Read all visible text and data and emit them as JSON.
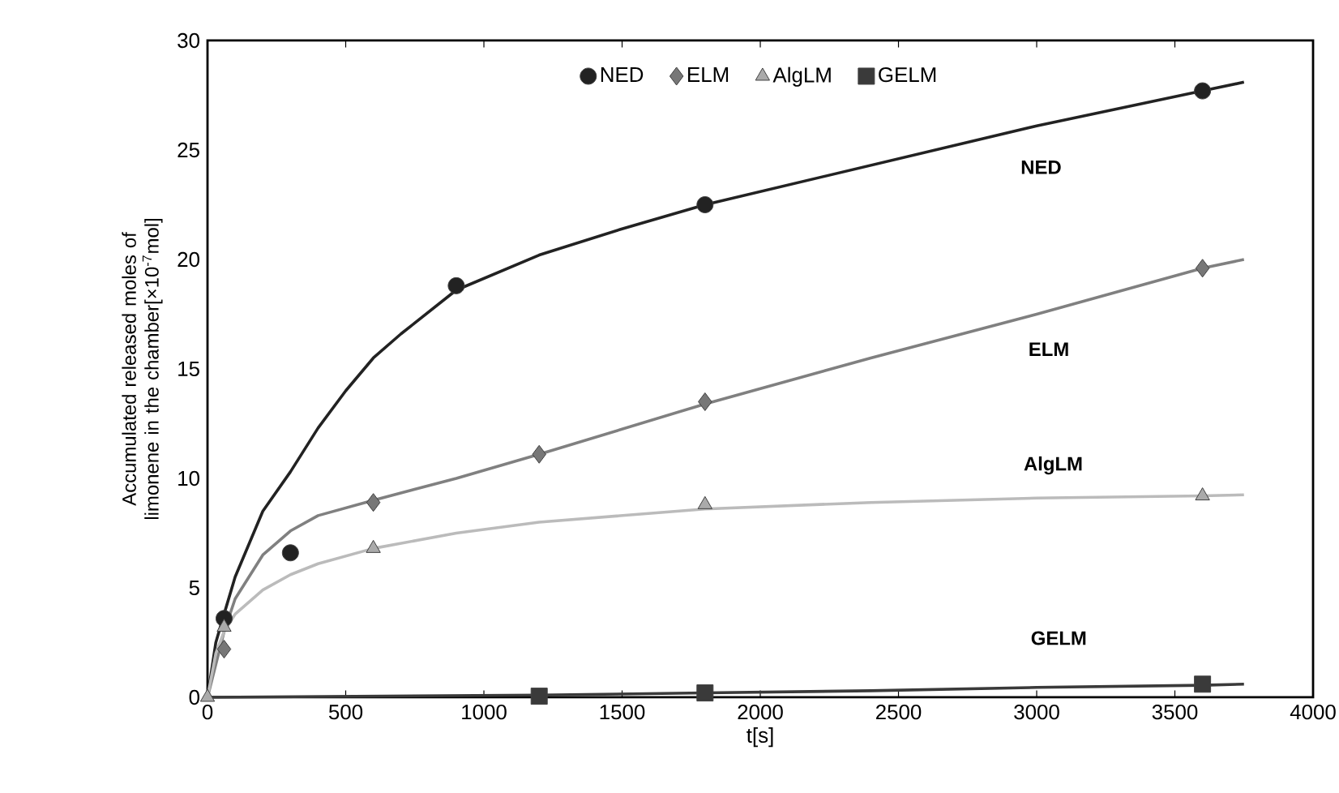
{
  "chart_data": {
    "type": "scatter",
    "xlabel": "t[s]",
    "ylabel": "Accumulated released moles of limonene in the chamber[×10$^{-7}$mol]",
    "xlim": [
      0,
      4000
    ],
    "ylim": [
      0,
      30
    ],
    "xticks": [
      0,
      500,
      1000,
      1500,
      2000,
      2500,
      3000,
      3500,
      4000
    ],
    "yticks": [
      0,
      5,
      10,
      15,
      20,
      25,
      30
    ],
    "legend": "top",
    "grid": false,
    "series": [
      {
        "name": "NED",
        "marker": "circle",
        "color": "#222222",
        "x": [
          60,
          300,
          900,
          1800,
          3600
        ],
        "values": [
          3.6,
          6.6,
          18.8,
          22.5,
          27.7
        ]
      },
      {
        "name": "ELM",
        "marker": "diamond",
        "color": "#777777",
        "x": [
          60,
          600,
          1200,
          1800,
          3600
        ],
        "values": [
          2.2,
          8.9,
          11.1,
          13.5,
          19.6
        ]
      },
      {
        "name": "AlgLM",
        "marker": "triangle",
        "color": "#aaaaaa",
        "x": [
          0,
          60,
          600,
          1800,
          3600
        ],
        "values": [
          0,
          3.2,
          6.8,
          8.8,
          9.2
        ]
      },
      {
        "name": "GELM",
        "marker": "square",
        "color": "#3a3a3a",
        "x": [
          1200,
          1800,
          3600
        ],
        "values": [
          0.05,
          0.2,
          0.6
        ]
      },
      {
        "type": "line",
        "marker": "none",
        "color": "#222222",
        "x": [
          0,
          30,
          60,
          100,
          200,
          300,
          400,
          500,
          600,
          700,
          800,
          900,
          1200,
          1500,
          1800,
          2400,
          3000,
          3600,
          3750
        ],
        "values": [
          0,
          2.5,
          3.8,
          5.5,
          8.5,
          10.3,
          12.3,
          14,
          15.5,
          16.6,
          17.6,
          18.6,
          20.2,
          21.4,
          22.5,
          24.3,
          26.1,
          27.7,
          28.1
        ]
      },
      {
        "type": "line",
        "marker": "none",
        "color": "#808080",
        "x": [
          0,
          30,
          60,
          100,
          200,
          300,
          400,
          600,
          900,
          1200,
          1800,
          2400,
          3000,
          3600,
          3750
        ],
        "values": [
          0,
          1.5,
          3,
          4.5,
          6.5,
          7.6,
          8.3,
          9.0,
          10.0,
          11.1,
          13.4,
          15.5,
          17.5,
          19.6,
          20.0
        ]
      },
      {
        "type": "line",
        "marker": "none",
        "color": "#bbbbbb",
        "x": [
          0,
          30,
          60,
          100,
          200,
          300,
          400,
          600,
          900,
          1200,
          1800,
          2400,
          3000,
          3600,
          3750
        ],
        "values": [
          0,
          2,
          3,
          3.8,
          4.9,
          5.6,
          6.1,
          6.8,
          7.5,
          8.0,
          8.6,
          8.9,
          9.1,
          9.2,
          9.25
        ]
      },
      {
        "type": "line",
        "marker": "none",
        "color": "#3a3a3a",
        "x": [
          0,
          1200,
          1800,
          2400,
          3000,
          3600,
          3750
        ],
        "values": [
          0,
          0.1,
          0.2,
          0.3,
          0.45,
          0.55,
          0.6
        ]
      }
    ],
    "annotations": [
      "NED",
      "ELM",
      "AlgLM",
      "GELM"
    ]
  }
}
